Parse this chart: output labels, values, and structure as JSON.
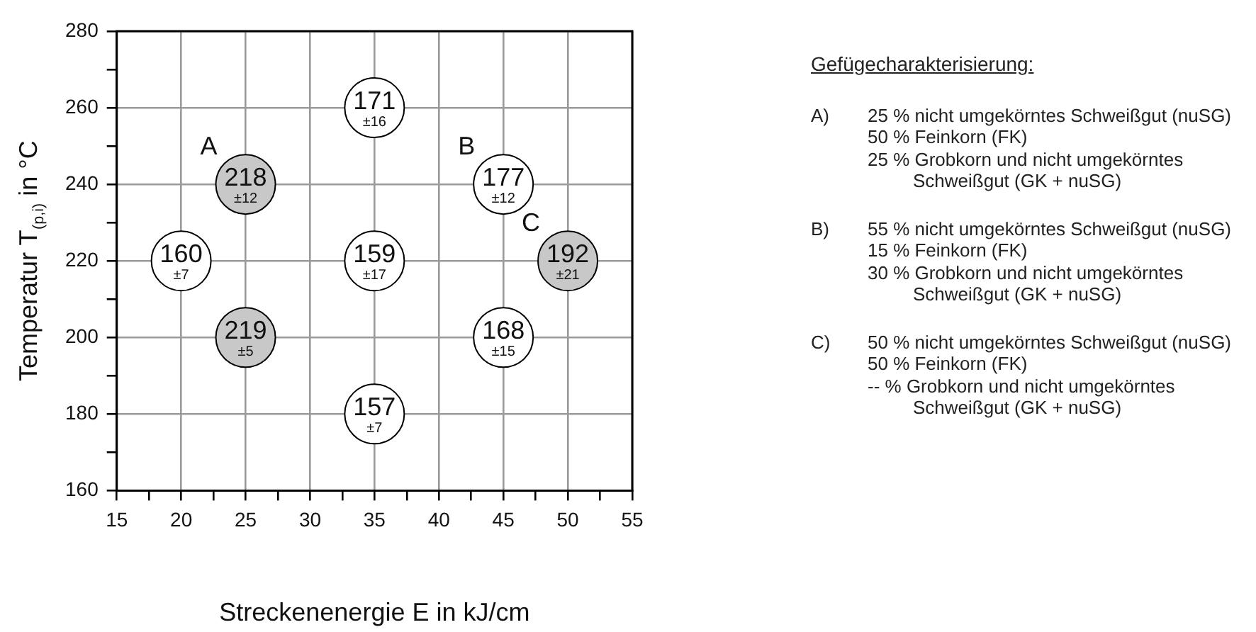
{
  "chart_data": {
    "type": "scatter",
    "xlabel": "Streckenenergie E in kJ/cm",
    "ylabel": "Temperatur T$_{(p,i)}$ in °C",
    "series": [
      {
        "color": "#ffffff",
        "x": [
          35,
          45,
          20,
          35,
          45,
          35
        ],
        "values": [
          260,
          240,
          220,
          220,
          200,
          180
        ]
      },
      {
        "color": "#c8c8c8",
        "x": [
          25,
          50,
          25
        ],
        "values": [
          240,
          220,
          200
        ]
      }
    ],
    "marker": "circle",
    "xlim": [
      15,
      55
    ],
    "xticks": [
      15,
      {
        "value": 17.5,
        "label": null
      },
      20,
      {
        "value": 22.5,
        "label": null
      },
      25,
      {
        "value": 27.5,
        "label": null
      },
      30,
      {
        "value": 32.5,
        "label": null
      },
      35,
      {
        "value": 37.5,
        "label": null
      },
      40,
      {
        "value": 42.5,
        "label": null
      },
      45,
      {
        "value": 47.5,
        "label": null
      },
      50,
      {
        "value": 52.5,
        "label": null
      },
      55
    ],
    "ylim": [
      160,
      280
    ],
    "yticks": [
      160,
      {
        "value": 170,
        "label": null
      },
      180,
      {
        "value": 190,
        "label": null
      },
      200,
      {
        "value": 210,
        "label": null
      },
      220,
      {
        "value": 230,
        "label": null
      },
      240,
      {
        "value": 250,
        "label": null
      },
      260,
      {
        "value": 270,
        "label": null
      },
      280
    ],
    "grid": true,
    "annotations": [
      {
        "text": "171\n±16",
        "x": 35,
        "y": 260
      },
      {
        "text": "218\n±12",
        "x": 25,
        "y": 240
      },
      {
        "text": "177\n±12",
        "x": 45,
        "y": 240
      },
      {
        "text": "160\n±7",
        "x": 20,
        "y": 220
      },
      {
        "text": "159\n±17",
        "x": 35,
        "y": 220
      },
      {
        "text": "192\n±21",
        "x": 50,
        "y": 220
      },
      {
        "text": "219\n±5",
        "x": 25,
        "y": 200
      },
      {
        "text": "168\n±15",
        "x": 45,
        "y": 200
      },
      {
        "text": "157\n±7",
        "x": 35,
        "y": 180
      },
      {
        "text": "A",
        "x": 25,
        "y": 240
      },
      {
        "text": "B",
        "x": 45,
        "y": 240
      },
      {
        "text": "C",
        "x": 50,
        "y": 220
      },
      "Gefügecharakterisierung:",
      "A)\n25 % nicht umgekörntes Schweißgut (nuSG)\n50 % Feinkorn (FK)\n25 % Grobkorn und nicht umgekörntes\nSchweißgut (GK + nuSG)",
      "B)\n55 % nicht umgekörntes Schweißgut (nuSG)\n15 % Feinkorn (FK)\n30 % Grobkorn und nicht umgekörntes\nSchweißgut (GK + nuSG)",
      "C)\n50 % nicht umgekörntes Schweißgut (nuSG)\n50 % Feinkorn (FK)\n-- % Grobkorn und nicht umgekörntes\nSchweißgut (GK + nuSG)"
    ]
  }
}
